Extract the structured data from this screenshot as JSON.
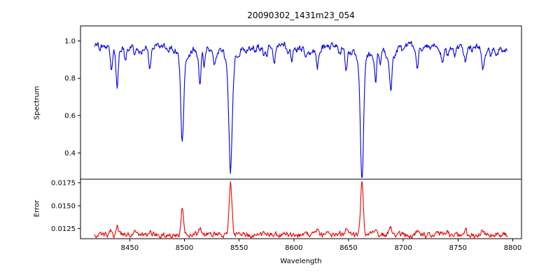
{
  "chart_data": {
    "type": "line",
    "title": "20090302_1431m23_054",
    "xlabel": "Wavelength",
    "xlim": [
      8405,
      8808
    ],
    "x_start": 8418,
    "x_end": 8795,
    "x_step": 0.5,
    "xticks": [
      8450,
      8500,
      8550,
      8600,
      8650,
      8700,
      8750,
      8800
    ],
    "xtick_labels": [
      "8450",
      "8500",
      "8550",
      "8600",
      "8650",
      "8700",
      "8750",
      "8800"
    ],
    "panels": [
      {
        "name": "spectrum",
        "ylabel": "Spectrum",
        "color": "#0000dd",
        "ylim": [
          0.26,
          1.08
        ],
        "yticks": [
          0.4,
          0.6,
          0.8,
          1.0
        ],
        "ytick_labels": [
          "0.4",
          "0.6",
          "0.8",
          "1.0"
        ],
        "continuum": 0.972,
        "noise_amplitude": 0.012,
        "absorption_lines": [
          {
            "center": 8433.5,
            "depth": 0.1,
            "width": 0.9
          },
          {
            "center": 8438.5,
            "depth": 0.21,
            "width": 1.0
          },
          {
            "center": 8446.0,
            "depth": 0.08,
            "width": 0.8
          },
          {
            "center": 8468.5,
            "depth": 0.13,
            "width": 1.0
          },
          {
            "center": 8498.0,
            "depth": 0.5,
            "width": 1.3
          },
          {
            "center": 8514.1,
            "depth": 0.17,
            "width": 0.9
          },
          {
            "center": 8518.1,
            "depth": 0.1,
            "width": 0.8
          },
          {
            "center": 8527.0,
            "depth": 0.08,
            "width": 0.8
          },
          {
            "center": 8542.1,
            "depth": 0.645,
            "width": 1.6
          },
          {
            "center": 8582.0,
            "depth": 0.07,
            "width": 0.8
          },
          {
            "center": 8598.0,
            "depth": 0.09,
            "width": 0.8
          },
          {
            "center": 8611.0,
            "depth": 0.06,
            "width": 0.8
          },
          {
            "center": 8621.5,
            "depth": 0.11,
            "width": 0.9
          },
          {
            "center": 8648.0,
            "depth": 0.09,
            "width": 0.9
          },
          {
            "center": 8662.2,
            "depth": 0.665,
            "width": 1.4
          },
          {
            "center": 8674.7,
            "depth": 0.17,
            "width": 0.9
          },
          {
            "center": 8679.0,
            "depth": 0.09,
            "width": 0.8
          },
          {
            "center": 8688.6,
            "depth": 0.22,
            "width": 1.0
          },
          {
            "center": 8713.0,
            "depth": 0.08,
            "width": 0.8
          },
          {
            "center": 8736.0,
            "depth": 0.09,
            "width": 0.9
          },
          {
            "center": 8747.0,
            "depth": 0.06,
            "width": 0.8
          },
          {
            "center": 8757.0,
            "depth": 0.08,
            "width": 0.8
          },
          {
            "center": 8773.0,
            "depth": 0.1,
            "width": 0.9
          },
          {
            "center": 8780.0,
            "depth": 0.06,
            "width": 0.8
          }
        ]
      },
      {
        "name": "error",
        "ylabel": "Error",
        "color": "#ee0000",
        "ylim": [
          0.0114,
          0.0179
        ],
        "yticks": [
          0.0125,
          0.015,
          0.0175
        ],
        "ytick_labels": [
          "0.0125",
          "0.0150",
          "0.0175"
        ],
        "baseline": 0.0118,
        "peaks": [
          {
            "center": 8433.0,
            "height": 0.0006,
            "width": 0.9
          },
          {
            "center": 8438.5,
            "height": 0.0009,
            "width": 1.0
          },
          {
            "center": 8468.5,
            "height": 0.0004,
            "width": 0.9
          },
          {
            "center": 8498.0,
            "height": 0.0031,
            "width": 1.2
          },
          {
            "center": 8514.1,
            "height": 0.0007,
            "width": 0.9
          },
          {
            "center": 8542.1,
            "height": 0.0057,
            "width": 1.3
          },
          {
            "center": 8621.5,
            "height": 0.0003,
            "width": 0.9
          },
          {
            "center": 8648.0,
            "height": 0.0003,
            "width": 0.9
          },
          {
            "center": 8662.2,
            "height": 0.0054,
            "width": 1.2
          },
          {
            "center": 8674.7,
            "height": 0.0005,
            "width": 0.9
          },
          {
            "center": 8688.6,
            "height": 0.0009,
            "width": 1.0
          },
          {
            "center": 8713.0,
            "height": 0.0003,
            "width": 0.8
          },
          {
            "center": 8736.0,
            "height": 0.0004,
            "width": 0.9
          },
          {
            "center": 8757.0,
            "height": 0.0004,
            "width": 0.8
          },
          {
            "center": 8773.0,
            "height": 0.0004,
            "width": 0.9
          }
        ]
      }
    ]
  }
}
